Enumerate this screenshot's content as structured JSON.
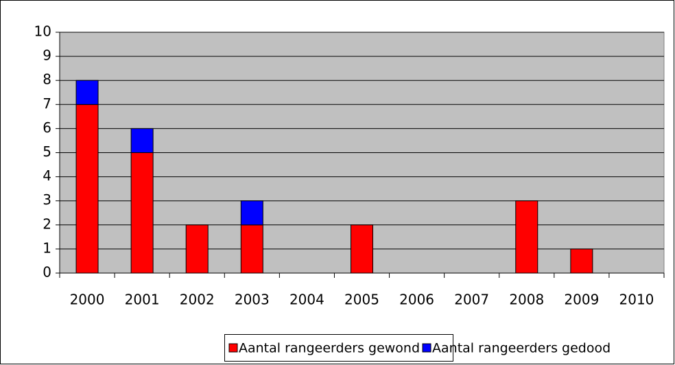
{
  "chart_data": {
    "type": "stacked-bar",
    "categories": [
      "2000",
      "2001",
      "2002",
      "2003",
      "2004",
      "2005",
      "2006",
      "2007",
      "2008",
      "2009",
      "2010"
    ],
    "series": [
      {
        "name": "Aantal rangeerders gewond",
        "color": "#ff0000",
        "values": [
          7,
          5,
          2,
          2,
          0,
          2,
          0,
          0,
          3,
          1,
          0
        ]
      },
      {
        "name": "Aantal rangeerders gedood",
        "color": "#0000ff",
        "values": [
          1,
          1,
          0,
          1,
          0,
          0,
          0,
          0,
          0,
          0,
          0
        ]
      }
    ],
    "ylim": [
      0,
      10
    ],
    "yticks": [
      0,
      1,
      2,
      3,
      4,
      5,
      6,
      7,
      8,
      9,
      10
    ],
    "grid": true,
    "legend": "bottom"
  }
}
